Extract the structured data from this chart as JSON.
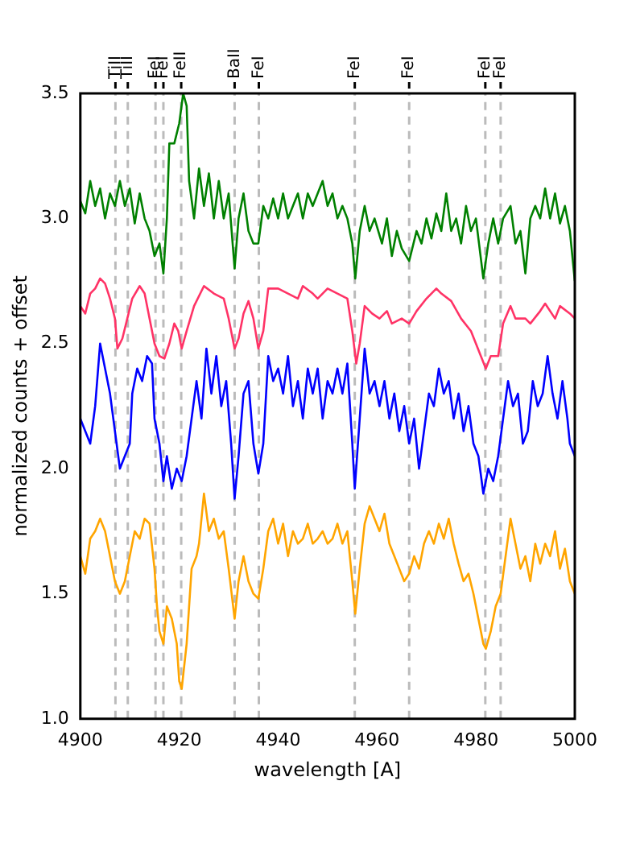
{
  "chart_data": {
    "type": "line",
    "xlabel": "wavelength [A]",
    "ylabel": "normalized counts + offset",
    "xlim": [
      4900,
      5000
    ],
    "xticks": [
      4900,
      4920,
      4940,
      4960,
      4980,
      5000
    ],
    "ylim": [
      1.0,
      3.5
    ],
    "yticks": [
      {
        "value": 1.0,
        "label": "1.0"
      },
      {
        "value": 1.5,
        "label": "1.5"
      },
      {
        "value": 2.0,
        "label": "2.0"
      },
      {
        "value": 2.5,
        "label": "2.5"
      },
      {
        "value": 3.0,
        "label": "3.0"
      },
      {
        "value": 3.5,
        "label": "3.5"
      }
    ],
    "grid": false,
    "legend": false,
    "marker": "none",
    "line_style": "solid",
    "ref_lines": [
      {
        "axis": "x",
        "value": 4907.1,
        "label": "TiII",
        "color": "#bbbbbb",
        "line_style": "dashed"
      },
      {
        "axis": "x",
        "value": 4909.6,
        "label": "TiII",
        "color": "#bbbbbb",
        "line_style": "dashed"
      },
      {
        "axis": "x",
        "value": 4915.2,
        "label": "FeI",
        "color": "#bbbbbb",
        "line_style": "dashed"
      },
      {
        "axis": "x",
        "value": 4916.8,
        "label": "FeI",
        "color": "#bbbbbb",
        "line_style": "dashed"
      },
      {
        "axis": "x",
        "value": 4920.4,
        "label": "FeII",
        "color": "#bbbbbb",
        "line_style": "dashed"
      },
      {
        "axis": "x",
        "value": 4931.2,
        "label": "BaII",
        "color": "#bbbbbb",
        "line_style": "dashed"
      },
      {
        "axis": "x",
        "value": 4936.1,
        "label": "FeI",
        "color": "#bbbbbb",
        "line_style": "dashed"
      },
      {
        "axis": "x",
        "value": 4955.5,
        "label": "FeI",
        "color": "#bbbbbb",
        "line_style": "dashed"
      },
      {
        "axis": "x",
        "value": 4966.5,
        "label": "FeI",
        "color": "#bbbbbb",
        "line_style": "dashed"
      },
      {
        "axis": "x",
        "value": 4981.9,
        "label": "FeI",
        "color": "#bbbbbb",
        "line_style": "dashed"
      },
      {
        "axis": "x",
        "value": 4985.0,
        "label": "FeI",
        "color": "#bbbbbb",
        "line_style": "dashed"
      }
    ],
    "series": [
      {
        "color": "#008000",
        "x": [
          4900,
          4901,
          4902,
          4903,
          4904,
          4905,
          4906,
          4907,
          4908,
          4909,
          4910,
          4911,
          4912,
          4913,
          4914,
          4915,
          4916,
          4916.8,
          4917.5,
          4918,
          4919,
          4920,
          4920.8,
          4921.5,
          4922,
          4923,
          4924,
          4925,
          4926,
          4927,
          4928,
          4929,
          4930,
          4931.2,
          4932,
          4933,
          4934,
          4935,
          4936,
          4937,
          4938,
          4939,
          4940,
          4941,
          4942,
          4943,
          4944,
          4945,
          4946,
          4947,
          4948,
          4949,
          4950,
          4951,
          4952,
          4953,
          4954,
          4955,
          4955.6,
          4956.5,
          4957.5,
          4958.5,
          4959.5,
          4961,
          4962,
          4963,
          4964,
          4965,
          4966.5,
          4968,
          4969,
          4970,
          4971,
          4972,
          4973,
          4974,
          4975,
          4976,
          4977,
          4978,
          4979,
          4980,
          4981.5,
          4982.5,
          4983.5,
          4984.5,
          4985.5,
          4987,
          4988,
          4989,
          4990,
          4991,
          4992,
          4993,
          4994,
          4995,
          4996,
          4997,
          4998,
          4999,
          5000
        ],
        "values": [
          3.07,
          3.02,
          3.15,
          3.05,
          3.12,
          3.0,
          3.1,
          3.05,
          3.15,
          3.05,
          3.12,
          2.98,
          3.1,
          3.0,
          2.95,
          2.85,
          2.9,
          2.78,
          3.0,
          3.3,
          3.3,
          3.38,
          3.5,
          3.45,
          3.15,
          3.0,
          3.2,
          3.05,
          3.18,
          3.0,
          3.15,
          3.0,
          3.1,
          2.8,
          3.0,
          3.1,
          2.95,
          2.9,
          2.9,
          3.05,
          3.0,
          3.08,
          3.0,
          3.1,
          3.0,
          3.05,
          3.1,
          3.0,
          3.1,
          3.05,
          3.1,
          3.15,
          3.05,
          3.1,
          3.0,
          3.05,
          3.0,
          2.9,
          2.76,
          2.95,
          3.05,
          2.95,
          3.0,
          2.9,
          3.0,
          2.85,
          2.95,
          2.88,
          2.83,
          2.95,
          2.9,
          3.0,
          2.92,
          3.02,
          2.95,
          3.1,
          2.95,
          3.0,
          2.9,
          3.05,
          2.95,
          3.0,
          2.76,
          2.9,
          3.0,
          2.9,
          3.0,
          3.05,
          2.9,
          2.95,
          2.78,
          3.0,
          3.05,
          3.0,
          3.12,
          3.0,
          3.1,
          2.98,
          3.05,
          2.95,
          2.75
        ]
      },
      {
        "color": "#ff3366",
        "x": [
          4900,
          4901,
          4902,
          4903,
          4904,
          4905,
          4906,
          4907,
          4907.5,
          4908.5,
          4909.5,
          4910.5,
          4912,
          4913,
          4914,
          4915,
          4916,
          4917,
          4918,
          4919,
          4919.8,
          4920.5,
          4921.5,
          4923,
          4925,
          4927,
          4929,
          4930,
          4931.2,
          4932,
          4933,
          4934,
          4935,
          4936,
          4937,
          4938,
          4940,
          4942,
          4944,
          4945,
          4947,
          4948,
          4950,
          4952,
          4954,
          4955,
          4955.8,
          4956.5,
          4957.5,
          4959,
          4960.5,
          4962,
          4963,
          4965,
          4966.5,
          4968,
          4970,
          4972,
          4973,
          4975,
          4977,
          4979,
          4981,
          4982,
          4983,
          4984.5,
          4985.5,
          4987,
          4988,
          4990,
          4991,
          4993,
          4994,
          4996,
          4997,
          4999,
          5000
        ],
        "values": [
          2.65,
          2.62,
          2.7,
          2.72,
          2.76,
          2.74,
          2.68,
          2.6,
          2.48,
          2.52,
          2.6,
          2.68,
          2.73,
          2.7,
          2.6,
          2.5,
          2.45,
          2.44,
          2.5,
          2.58,
          2.55,
          2.48,
          2.55,
          2.65,
          2.73,
          2.7,
          2.68,
          2.6,
          2.48,
          2.52,
          2.62,
          2.67,
          2.6,
          2.48,
          2.55,
          2.72,
          2.72,
          2.7,
          2.68,
          2.73,
          2.7,
          2.68,
          2.72,
          2.7,
          2.68,
          2.55,
          2.42,
          2.5,
          2.65,
          2.62,
          2.6,
          2.63,
          2.58,
          2.6,
          2.58,
          2.63,
          2.68,
          2.72,
          2.7,
          2.67,
          2.6,
          2.55,
          2.45,
          2.4,
          2.45,
          2.45,
          2.58,
          2.65,
          2.6,
          2.6,
          2.58,
          2.63,
          2.66,
          2.6,
          2.65,
          2.62,
          2.6
        ]
      },
      {
        "color": "#0000ff",
        "x": [
          4900,
          4901,
          4902,
          4903,
          4904,
          4905,
          4906,
          4907,
          4908,
          4909,
          4910,
          4910.5,
          4911.5,
          4912.5,
          4913.5,
          4914.5,
          4915,
          4916,
          4916.8,
          4917.5,
          4918.5,
          4919.5,
          4920.5,
          4921.5,
          4922.5,
          4923.5,
          4924.5,
          4925.5,
          4926.5,
          4927.5,
          4928.5,
          4929.5,
          4930.5,
          4931.2,
          4932,
          4933,
          4934,
          4935,
          4936,
          4937,
          4938,
          4939,
          4940,
          4941,
          4942,
          4943,
          4944,
          4945,
          4946,
          4947,
          4948,
          4949,
          4950,
          4951,
          4952,
          4953,
          4954,
          4955,
          4955.5,
          4956.5,
          4957.5,
          4958.5,
          4959.5,
          4960.5,
          4961.5,
          4962.5,
          4963.5,
          4964.5,
          4965.5,
          4966.5,
          4967.5,
          4968.5,
          4969.5,
          4970.5,
          4971.5,
          4972.5,
          4973.5,
          4974.5,
          4975.5,
          4976.5,
          4977.5,
          4978.5,
          4979.5,
          4980.5,
          4981.5,
          4982.5,
          4983.5,
          4984.5,
          4985.5,
          4986.5,
          4987.5,
          4988.5,
          4989.5,
          4990.5,
          4991.5,
          4992.5,
          4993.5,
          4994.5,
          4995.5,
          4996.5,
          4997.5,
          4998.5,
          4999,
          5000
        ],
        "values": [
          2.2,
          2.15,
          2.1,
          2.25,
          2.5,
          2.4,
          2.3,
          2.15,
          2.0,
          2.05,
          2.1,
          2.3,
          2.4,
          2.35,
          2.45,
          2.42,
          2.2,
          2.1,
          1.95,
          2.05,
          1.92,
          2.0,
          1.95,
          2.05,
          2.2,
          2.35,
          2.2,
          2.48,
          2.3,
          2.45,
          2.25,
          2.35,
          2.1,
          1.88,
          2.05,
          2.3,
          2.35,
          2.1,
          1.98,
          2.1,
          2.45,
          2.35,
          2.4,
          2.3,
          2.45,
          2.25,
          2.35,
          2.2,
          2.4,
          2.3,
          2.4,
          2.2,
          2.35,
          2.3,
          2.4,
          2.3,
          2.42,
          2.1,
          1.92,
          2.2,
          2.48,
          2.3,
          2.35,
          2.25,
          2.35,
          2.2,
          2.3,
          2.15,
          2.25,
          2.1,
          2.2,
          2.0,
          2.15,
          2.3,
          2.25,
          2.4,
          2.3,
          2.35,
          2.2,
          2.3,
          2.15,
          2.25,
          2.1,
          2.05,
          1.9,
          2.0,
          1.95,
          2.05,
          2.2,
          2.35,
          2.25,
          2.3,
          2.1,
          2.15,
          2.35,
          2.25,
          2.3,
          2.45,
          2.3,
          2.2,
          2.35,
          2.2,
          2.1,
          2.05
        ]
      },
      {
        "color": "#ffa500",
        "x": [
          4900,
          4901,
          4902,
          4903,
          4904,
          4905,
          4906,
          4907,
          4908,
          4909,
          4910,
          4911,
          4912,
          4913,
          4914,
          4915,
          4915.5,
          4916,
          4916.8,
          4917.5,
          4918.5,
          4919.5,
          4920,
          4920.5,
          4921.5,
          4922.5,
          4923.5,
          4924,
          4925,
          4926,
          4927,
          4928,
          4929,
          4930,
          4931.2,
          4932,
          4933,
          4934,
          4935,
          4936,
          4937,
          4938,
          4939,
          4940,
          4941,
          4942,
          4943,
          4944,
          4945,
          4946,
          4947,
          4948,
          4949,
          4950,
          4951,
          4952,
          4953,
          4954,
          4955,
          4955.6,
          4956.5,
          4957.5,
          4958.5,
          4959.5,
          4960.5,
          4961.5,
          4962.5,
          4963.5,
          4964.5,
          4965.5,
          4966.5,
          4967.5,
          4968.5,
          4969.5,
          4970.5,
          4971.5,
          4972.5,
          4973.5,
          4974.5,
          4975.5,
          4976.5,
          4977.5,
          4978.5,
          4979.5,
          4980.5,
          4981.5,
          4982,
          4983,
          4984,
          4985,
          4986,
          4987,
          4988,
          4989,
          4990,
          4991,
          4992,
          4993,
          4994,
          4995,
          4996,
          4997,
          4998,
          4999,
          5000
        ],
        "values": [
          1.65,
          1.58,
          1.72,
          1.75,
          1.8,
          1.75,
          1.65,
          1.55,
          1.5,
          1.55,
          1.65,
          1.75,
          1.72,
          1.8,
          1.78,
          1.6,
          1.45,
          1.35,
          1.3,
          1.45,
          1.4,
          1.3,
          1.15,
          1.12,
          1.3,
          1.6,
          1.65,
          1.7,
          1.9,
          1.75,
          1.8,
          1.72,
          1.75,
          1.6,
          1.4,
          1.55,
          1.65,
          1.55,
          1.5,
          1.48,
          1.6,
          1.75,
          1.8,
          1.7,
          1.78,
          1.65,
          1.75,
          1.7,
          1.72,
          1.78,
          1.7,
          1.72,
          1.75,
          1.7,
          1.72,
          1.78,
          1.7,
          1.75,
          1.55,
          1.42,
          1.6,
          1.78,
          1.85,
          1.8,
          1.75,
          1.82,
          1.7,
          1.65,
          1.6,
          1.55,
          1.58,
          1.65,
          1.6,
          1.7,
          1.75,
          1.7,
          1.78,
          1.72,
          1.8,
          1.7,
          1.62,
          1.55,
          1.58,
          1.5,
          1.4,
          1.3,
          1.28,
          1.35,
          1.45,
          1.5,
          1.65,
          1.8,
          1.7,
          1.6,
          1.65,
          1.55,
          1.7,
          1.62,
          1.7,
          1.65,
          1.75,
          1.6,
          1.68,
          1.55,
          1.5
        ]
      }
    ]
  }
}
